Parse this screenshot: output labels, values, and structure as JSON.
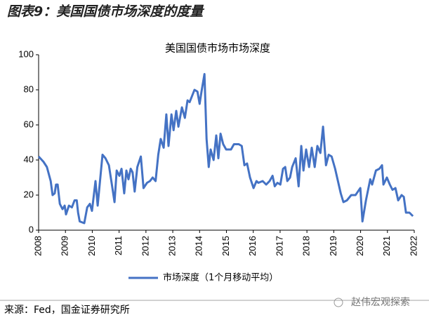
{
  "header": {
    "title": "图表9：美国国债市场深度的度量"
  },
  "chart_data": {
    "type": "line",
    "title": "美国国债市场市场深度",
    "x": [
      2008.0,
      2008.18,
      2008.31,
      2008.45,
      2008.52,
      2008.6,
      2008.65,
      2008.71,
      2008.79,
      2008.89,
      2008.97,
      2009.02,
      2009.13,
      2009.24,
      2009.34,
      2009.42,
      2009.47,
      2009.53,
      2009.7,
      2009.81,
      2009.91,
      2009.99,
      2010.12,
      2010.2,
      2010.38,
      2010.49,
      2010.62,
      2010.75,
      2010.83,
      2010.91,
      2011.01,
      2011.09,
      2011.19,
      2011.27,
      2011.35,
      2011.43,
      2011.5,
      2011.58,
      2011.68,
      2011.81,
      2011.91,
      2012.04,
      2012.15,
      2012.25,
      2012.36,
      2012.46,
      2012.55,
      2012.66,
      2012.76,
      2012.84,
      2012.95,
      2013.03,
      2013.13,
      2013.21,
      2013.34,
      2013.45,
      2013.55,
      2013.63,
      2013.81,
      2013.92,
      2014.0,
      2014.07,
      2014.18,
      2014.26,
      2014.34,
      2014.41,
      2014.52,
      2014.62,
      2014.7,
      2014.78,
      2014.88,
      2014.99,
      2015.17,
      2015.28,
      2015.46,
      2015.57,
      2015.67,
      2015.77,
      2015.88,
      2016.01,
      2016.12,
      2016.19,
      2016.35,
      2016.48,
      2016.61,
      2016.72,
      2016.8,
      2016.9,
      2017.01,
      2017.11,
      2017.19,
      2017.27,
      2017.37,
      2017.45,
      2017.58,
      2017.69,
      2017.79,
      2017.87,
      2017.97,
      2018.08,
      2018.18,
      2018.29,
      2018.39,
      2018.5,
      2018.6,
      2018.71,
      2018.81,
      2018.92,
      2019.05,
      2019.26,
      2019.36,
      2019.49,
      2019.65,
      2019.81,
      2019.99,
      2020.07,
      2020.2,
      2020.36,
      2020.43,
      2020.57,
      2020.7,
      2020.8,
      2020.85,
      2020.98,
      2021.09,
      2021.19,
      2021.3,
      2021.4,
      2021.53,
      2021.61,
      2021.69,
      2021.82,
      2021.95
    ],
    "series": [
      {
        "name": "市场深度（1个月移动平均）",
        "color": "#4472c4",
        "values": [
          42,
          39,
          36,
          28,
          20,
          21,
          26,
          26,
          15,
          12,
          14,
          9,
          14,
          13,
          17,
          17,
          10,
          5,
          4,
          13,
          15,
          11,
          28,
          14,
          43,
          41,
          37,
          24,
          16,
          34,
          31,
          35,
          21,
          34,
          29,
          35,
          33,
          22,
          36,
          42,
          24,
          27,
          28,
          30,
          28,
          43,
          52,
          47,
          66,
          48,
          66,
          57,
          68,
          59,
          70,
          64,
          74,
          73,
          80,
          79,
          72,
          79,
          89,
          52,
          36,
          46,
          40,
          54,
          41,
          55,
          49,
          46,
          46,
          49,
          49,
          48,
          37,
          38,
          30,
          24,
          28,
          27,
          28,
          26,
          28,
          31,
          25,
          27,
          26,
          35,
          36,
          28,
          30,
          36,
          41,
          25,
          48,
          34,
          46,
          36,
          47,
          36,
          48,
          44,
          59,
          37,
          43,
          42,
          35,
          21,
          16,
          17,
          20,
          20,
          24,
          5,
          17,
          29,
          26,
          34,
          35,
          37,
          26,
          30,
          26,
          23,
          24,
          17,
          20,
          19,
          10,
          10,
          8
        ]
      }
    ],
    "xlim": [
      2008,
      2022
    ],
    "xticks": [
      2008,
      2009,
      2010,
      2011,
      2012,
      2013,
      2014,
      2015,
      2016,
      2017,
      2018,
      2019,
      2020,
      2021,
      2022
    ],
    "ylim": [
      0,
      100
    ],
    "yticks": [
      0,
      20,
      40,
      60,
      80,
      100
    ],
    "grid": false,
    "legend": "bottom"
  },
  "footer": {
    "source": "来源：Fed，国金证券研究所",
    "watermark": "赵伟宏观探索"
  }
}
